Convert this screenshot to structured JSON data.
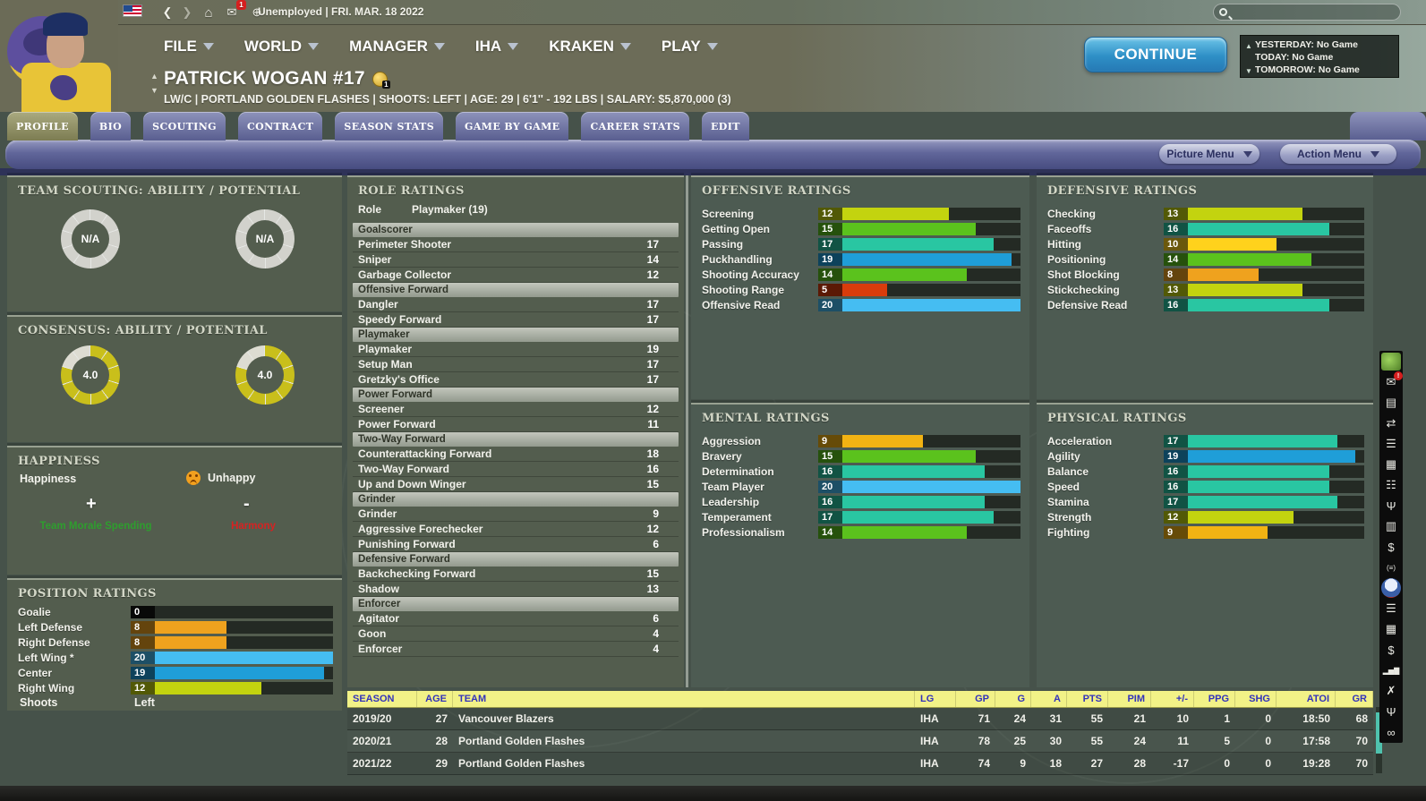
{
  "topbar": {
    "status": "Unemployed |",
    "date": "FRI. MAR. 18 2022",
    "icons": [
      "back-icon",
      "forward-icon",
      "home-icon",
      "mail-icon",
      "globe-icon"
    ],
    "mail_badge": "1"
  },
  "menus": [
    "FILE",
    "WORLD",
    "MANAGER",
    "IHA",
    "KRAKEN",
    "PLAY"
  ],
  "player": {
    "name": "PATRICK WOGAN #17",
    "details": "LW/C | PORTLAND GOLDEN FLASHES | SHOOTS: LEFT | AGE: 29 | 6'1'' - 192 LBS | SALARY: $5,870,000 (3)",
    "coin_badge": "1"
  },
  "continue_label": "CONTINUE",
  "schedule": {
    "yesterday": "YESTERDAY: No Game",
    "today": "TODAY: No Game",
    "tomorrow": "TOMORROW: No Game"
  },
  "tabs": [
    {
      "label": "PROFILE",
      "active": true
    },
    {
      "label": "BIO",
      "active": false
    },
    {
      "label": "SCOUTING",
      "active": false
    },
    {
      "label": "CONTRACT",
      "active": false
    },
    {
      "label": "SEASON STATS",
      "active": false
    },
    {
      "label": "GAME BY GAME",
      "active": false
    },
    {
      "label": "CAREER STATS",
      "active": false
    },
    {
      "label": "EDIT",
      "active": false
    }
  ],
  "menu_pills": {
    "picture": "Picture Menu",
    "action": "Action Menu"
  },
  "palette": {
    "black": "#121512",
    "red": "#d93c0c",
    "orange": "#efa21e",
    "amber": "#f2b313",
    "yellow": "#ffd21c",
    "yellowgreen": "#c3d30f",
    "green": "#5bc21d",
    "teal": "#29c6a2",
    "blue": "#1f9ed8",
    "skyblue": "#45bdf2",
    "donut_fill": "#c9bf1b",
    "donut_empty": "#dddcd2",
    "donut_na": "#d2d2cc"
  },
  "chart_data": [
    {
      "type": "bar",
      "title": "POSITION RATINGS",
      "categories": [
        "Goalie",
        "Left Defense",
        "Right Defense",
        "Left Wing *",
        "Center",
        "Right Wing"
      ],
      "values": [
        0,
        8,
        8,
        20,
        19,
        12
      ],
      "ylim": [
        0,
        20
      ]
    },
    {
      "type": "bar",
      "title": "OFFENSIVE RATINGS",
      "categories": [
        "Screening",
        "Getting Open",
        "Passing",
        "Puckhandling",
        "Shooting Accuracy",
        "Shooting Range",
        "Offensive Read"
      ],
      "values": [
        12,
        15,
        17,
        19,
        14,
        5,
        20
      ],
      "ylim": [
        0,
        20
      ]
    },
    {
      "type": "bar",
      "title": "MENTAL RATINGS",
      "categories": [
        "Aggression",
        "Bravery",
        "Determination",
        "Team Player",
        "Leadership",
        "Temperament",
        "Professionalism"
      ],
      "values": [
        9,
        15,
        16,
        20,
        16,
        17,
        14
      ],
      "ylim": [
        0,
        20
      ]
    },
    {
      "type": "bar",
      "title": "DEFENSIVE RATINGS",
      "categories": [
        "Checking",
        "Faceoffs",
        "Hitting",
        "Positioning",
        "Shot Blocking",
        "Stickchecking",
        "Defensive Read"
      ],
      "values": [
        13,
        16,
        10,
        14,
        8,
        13,
        16
      ],
      "ylim": [
        0,
        20
      ]
    },
    {
      "type": "bar",
      "title": "PHYSICAL RATINGS",
      "categories": [
        "Acceleration",
        "Agility",
        "Balance",
        "Speed",
        "Stamina",
        "Strength",
        "Fighting"
      ],
      "values": [
        17,
        19,
        16,
        16,
        17,
        12,
        9
      ],
      "ylim": [
        0,
        20
      ]
    }
  ],
  "team_scouting": {
    "title": "TEAM SCOUTING: ABILITY / POTENTIAL",
    "donuts": [
      {
        "value": "N/A",
        "fill": 0
      },
      {
        "value": "N/A",
        "fill": 0
      }
    ]
  },
  "consensus": {
    "title": "CONSENSUS: ABILITY / POTENTIAL",
    "donuts": [
      {
        "value": "4.0",
        "fill": 8
      },
      {
        "value": "4.0",
        "fill": 8
      }
    ]
  },
  "happiness": {
    "title": "HAPPINESS",
    "label": "Happiness",
    "status": "Unhappy",
    "plus": "+",
    "minus": "-",
    "positive_factor": "Team Morale Spending",
    "negative_factor": "Harmony"
  },
  "positions": {
    "title": "POSITION RATINGS",
    "shoots_label": "Shoots",
    "shoots_value": "Left"
  },
  "roles": {
    "title": "ROLE RATINGS",
    "role_label": "Role",
    "role_value": "Playmaker (19)",
    "groups": [
      {
        "header": "Goalscorer",
        "rows": [
          [
            "Perimeter Shooter",
            17
          ],
          [
            "Sniper",
            14
          ],
          [
            "Garbage Collector",
            12
          ]
        ]
      },
      {
        "header": "Offensive Forward",
        "rows": [
          [
            "Dangler",
            17
          ],
          [
            "Speedy Forward",
            17
          ]
        ]
      },
      {
        "header": "Playmaker",
        "rows": [
          [
            "Playmaker",
            19
          ],
          [
            "Setup Man",
            17
          ],
          [
            "Gretzky's Office",
            17
          ]
        ]
      },
      {
        "header": "Power Forward",
        "rows": [
          [
            "Screener",
            12
          ],
          [
            "Power Forward",
            11
          ]
        ]
      },
      {
        "header": "Two-Way Forward",
        "rows": [
          [
            "Counterattacking Forward",
            18
          ],
          [
            "Two-Way Forward",
            16
          ],
          [
            "Up and Down Winger",
            15
          ]
        ]
      },
      {
        "header": "Grinder",
        "rows": [
          [
            "Grinder",
            9
          ],
          [
            "Aggressive Forechecker",
            12
          ],
          [
            "Punishing Forward",
            6
          ]
        ]
      },
      {
        "header": "Defensive Forward",
        "rows": [
          [
            "Backchecking Forward",
            15
          ],
          [
            "Shadow",
            13
          ]
        ]
      },
      {
        "header": "Enforcer",
        "rows": [
          [
            "Agitator",
            6
          ],
          [
            "Goon",
            4
          ],
          [
            "Enforcer",
            4
          ]
        ]
      }
    ]
  },
  "ratings_titles": {
    "offensive": "OFFENSIVE RATINGS",
    "mental": "MENTAL RATINGS",
    "defensive": "DEFENSIVE RATINGS",
    "physical": "PHYSICAL RATINGS"
  },
  "stats_table": {
    "columns": [
      "SEASON",
      "AGE",
      "TEAM",
      "LG",
      "GP",
      "G",
      "A",
      "PTS",
      "PIM",
      "+/-",
      "PPG",
      "SHG",
      "ATOI",
      "GR"
    ],
    "rows": [
      [
        "2019/20",
        "27",
        "Vancouver Blazers",
        "IHA",
        "71",
        "24",
        "31",
        "55",
        "21",
        "10",
        "1",
        "0",
        "18:50",
        "68"
      ],
      [
        "2020/21",
        "28",
        "Portland Golden Flashes",
        "IHA",
        "78",
        "25",
        "30",
        "55",
        "24",
        "11",
        "5",
        "0",
        "17:58",
        "70"
      ],
      [
        "2021/22",
        "29",
        "Portland Golden Flashes",
        "IHA",
        "74",
        "9",
        "18",
        "27",
        "28",
        "-17",
        "0",
        "0",
        "19:28",
        "70"
      ]
    ]
  },
  "sidebar_icons": [
    {
      "name": "team-crest-icon",
      "glyph": "",
      "special": "crest"
    },
    {
      "name": "inbox-icon",
      "glyph": "✉",
      "badge": "!"
    },
    {
      "name": "lineup-card-icon",
      "glyph": "▤"
    },
    {
      "name": "transactions-icon",
      "glyph": "⇄"
    },
    {
      "name": "depth-chart-icon",
      "glyph": "☰"
    },
    {
      "name": "calendar-icon",
      "glyph": "▦"
    },
    {
      "name": "staff-icon",
      "glyph": "☷"
    },
    {
      "name": "trophy-icon",
      "glyph": "Ψ"
    },
    {
      "name": "report-icon",
      "glyph": "▥"
    },
    {
      "name": "contracts-icon",
      "glyph": "$"
    },
    {
      "name": "tactics-icon",
      "glyph": "(≡)"
    },
    {
      "name": "league-logo-icon",
      "glyph": "",
      "special": "league"
    },
    {
      "name": "league-list-icon",
      "glyph": "☰"
    },
    {
      "name": "league-schedule-icon",
      "glyph": "▦"
    },
    {
      "name": "finance-icon",
      "glyph": "$"
    },
    {
      "name": "stats-chart-icon",
      "glyph": "▂▅▇"
    },
    {
      "name": "crossed-sticks-icon",
      "glyph": "✗"
    },
    {
      "name": "awards-trophy-icon",
      "glyph": "Ψ"
    },
    {
      "name": "goggles-icon",
      "glyph": "∞"
    }
  ]
}
